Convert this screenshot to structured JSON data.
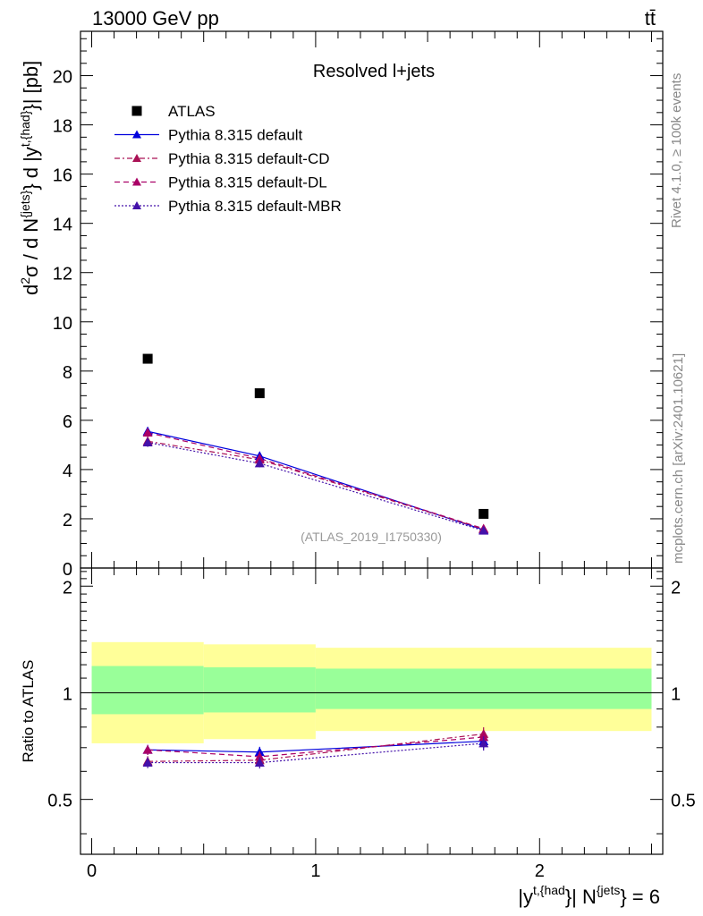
{
  "header": {
    "energy_label": "13000 GeV pp",
    "process_label": "tt̄"
  },
  "side_labels": {
    "rivet": "Rivet 4.1.0, ≥ 100k events",
    "mcplots": "mcplots.cern.ch [arXiv:2401.10621]"
  },
  "chart_data": {
    "type": "scatter",
    "title": "Resolved l+jets",
    "watermark": "(ATLAS_2019_I1750330)",
    "ylabel_main": "d²σ / d N^{jets} d |y^{t,{had}}| [pb]",
    "ylabel_ratio": "Ratio to ATLAS",
    "xlabel": "|y^{t,{had}}| N^{jets} = 6",
    "xlim": [
      -0.05,
      2.55
    ],
    "ylim_main": [
      0,
      21.8
    ],
    "ylim_ratio": [
      0.35,
      2.25
    ],
    "x_ticks": [
      0,
      1,
      2
    ],
    "y_ticks_main": [
      0,
      2,
      4,
      6,
      8,
      10,
      12,
      14,
      16,
      18,
      20
    ],
    "y_ticks_ratio": [
      0.5,
      1,
      2
    ],
    "data": {
      "name": "ATLAS",
      "x": [
        0.25,
        0.75,
        1.75
      ],
      "y": [
        8.5,
        7.1,
        2.2
      ],
      "color": "#000000"
    },
    "series": [
      {
        "name": "Pythia 8.315 default",
        "x": [
          0.25,
          0.75,
          1.75
        ],
        "y": [
          5.55,
          4.55,
          1.55
        ],
        "ratio": [
          0.69,
          0.68,
          0.73
        ],
        "yerr": [
          0.18,
          0.16,
          0.07
        ],
        "color": "#0000dd",
        "dash": "none"
      },
      {
        "name": "Pythia 8.315 default-CD",
        "x": [
          0.25,
          0.75,
          1.75
        ],
        "y": [
          5.15,
          4.4,
          1.58
        ],
        "ratio": [
          0.64,
          0.645,
          0.765
        ],
        "yerr": [
          0.18,
          0.16,
          0.07
        ],
        "color": "#aa1155",
        "dash": "6,3,2,3"
      },
      {
        "name": "Pythia 8.315 default-DL",
        "x": [
          0.25,
          0.75,
          1.75
        ],
        "y": [
          5.5,
          4.45,
          1.6
        ],
        "ratio": [
          0.69,
          0.66,
          0.75
        ],
        "yerr": [
          0.18,
          0.16,
          0.07
        ],
        "color": "#aa0066",
        "dash": "6,4"
      },
      {
        "name": "Pythia 8.315 default-MBR",
        "x": [
          0.25,
          0.75,
          1.75
        ],
        "y": [
          5.1,
          4.25,
          1.52
        ],
        "ratio": [
          0.635,
          0.635,
          0.72
        ],
        "yerr": [
          0.18,
          0.16,
          0.07
        ],
        "color": "#4411aa",
        "dash": "2,2"
      }
    ],
    "bands": {
      "bin_edges": [
        0,
        0.5,
        1.0,
        2.5
      ],
      "yellow": [
        [
          0.72,
          1.39
        ],
        [
          0.74,
          1.37
        ],
        [
          0.78,
          1.34
        ]
      ],
      "green": [
        [
          0.87,
          1.19
        ],
        [
          0.88,
          1.18
        ],
        [
          0.9,
          1.17
        ]
      ]
    }
  }
}
